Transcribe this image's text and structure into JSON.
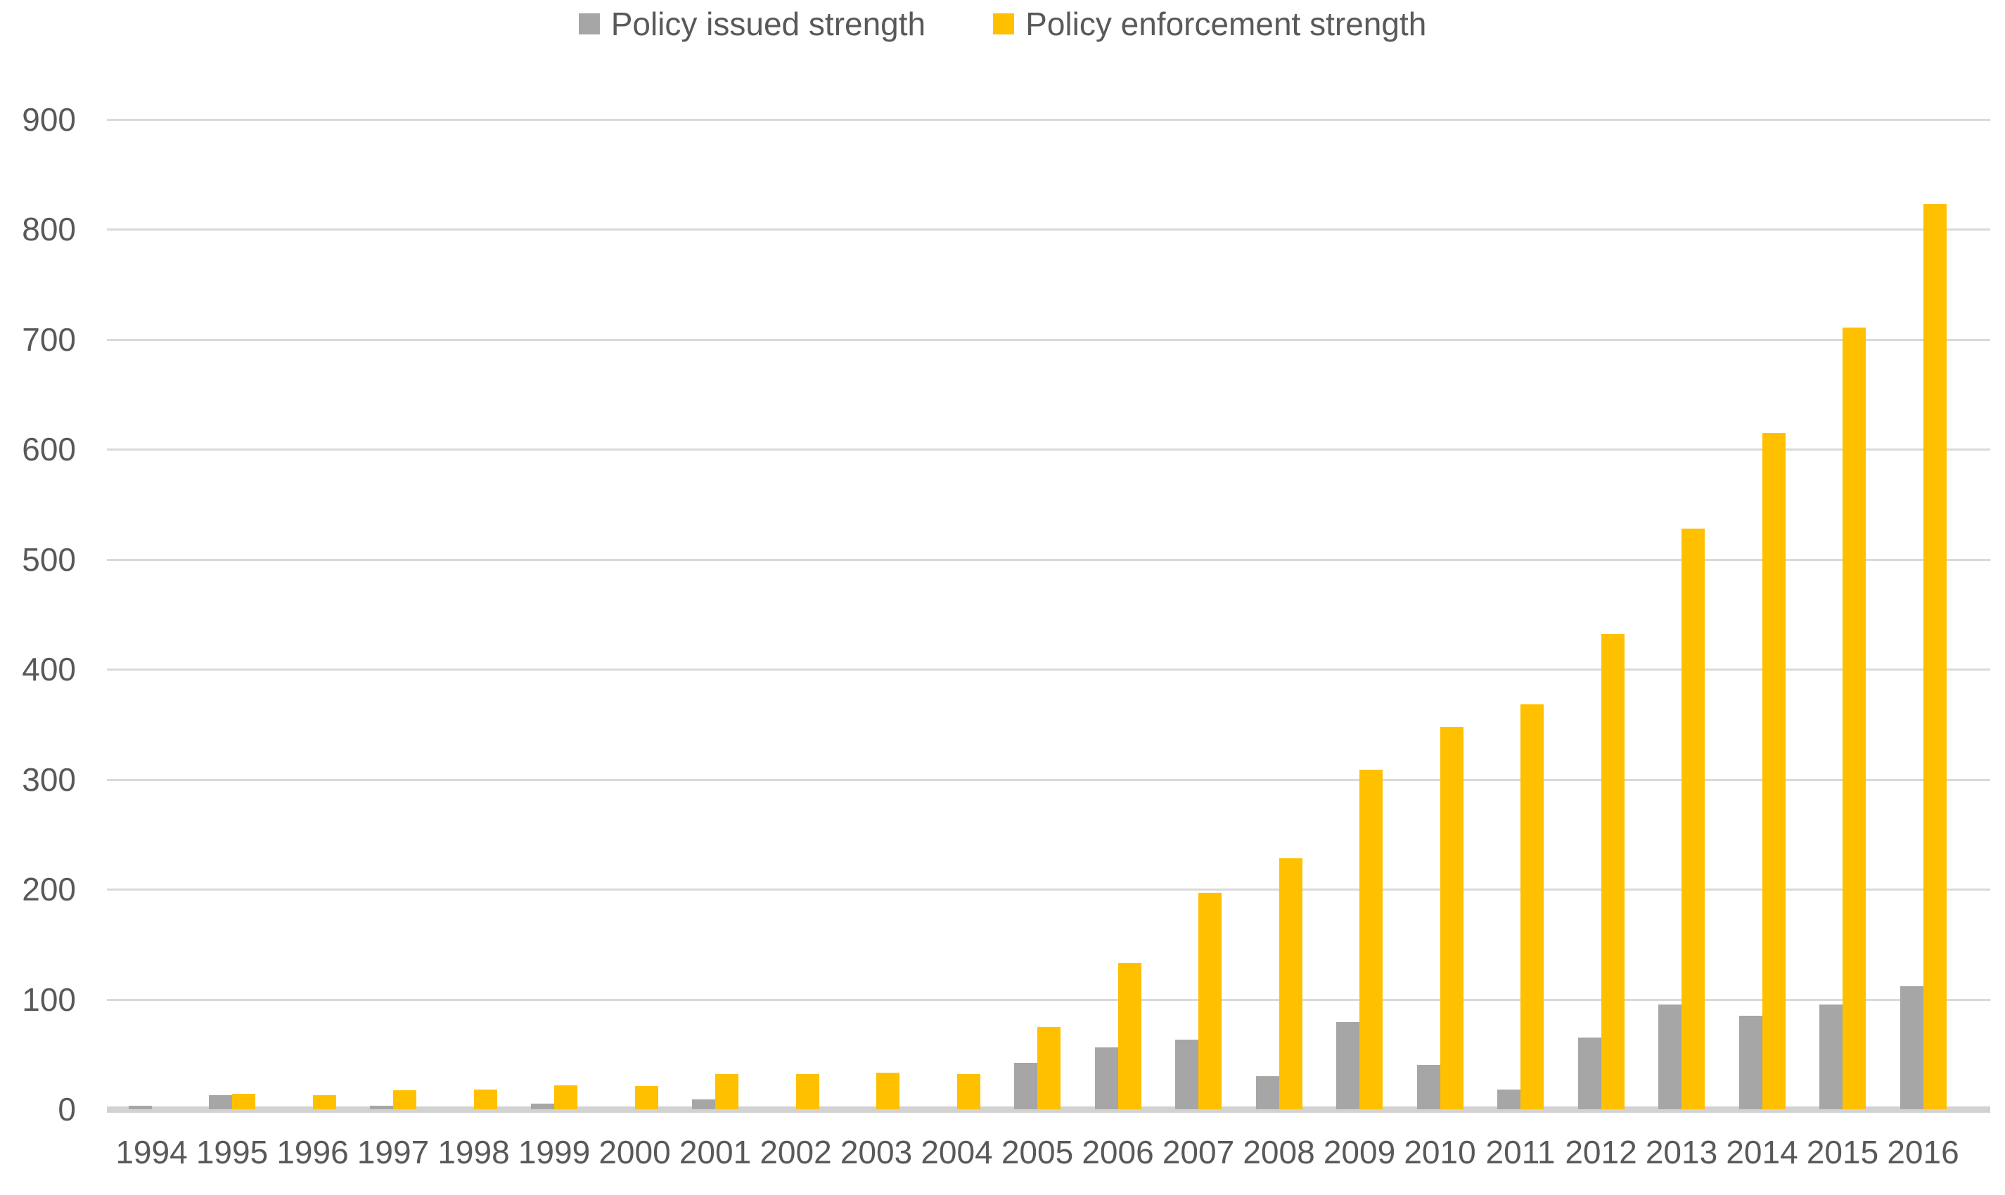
{
  "chart_data": {
    "type": "bar",
    "title": "",
    "categories": [
      "1994",
      "1995",
      "1996",
      "1997",
      "1998",
      "1999",
      "2000",
      "2001",
      "2002",
      "2003",
      "2004",
      "2005",
      "2006",
      "2007",
      "2008",
      "2009",
      "2010",
      "2011",
      "2012",
      "2013",
      "2014",
      "2015",
      "2016"
    ],
    "series": [
      {
        "name": "Policy issued strength",
        "color": "#a6a6a6",
        "values": [
          3,
          13,
          0,
          3,
          0,
          5,
          0,
          9,
          0,
          0,
          0,
          42,
          56,
          63,
          30,
          79,
          40,
          18,
          65,
          95,
          85,
          95,
          112
        ]
      },
      {
        "name": "Policy enforcement strength",
        "color": "#ffc000",
        "values": [
          0,
          14,
          13,
          17,
          18,
          22,
          21,
          32,
          32,
          33,
          32,
          75,
          133,
          197,
          228,
          309,
          348,
          368,
          432,
          528,
          615,
          711,
          823
        ]
      }
    ],
    "xlabel": "",
    "ylabel": "",
    "ylim": [
      0,
      900
    ],
    "y_tick_step": 100,
    "y_ticks": [
      "0",
      "100",
      "200",
      "300",
      "400",
      "500",
      "600",
      "700",
      "800",
      "900"
    ],
    "grid": true,
    "legend_position": "top"
  },
  "colors": {
    "gridline": "#d9d9d9",
    "axis_line": "#d2d2d2",
    "tick_text": "#595959",
    "background": "#ffffff"
  }
}
